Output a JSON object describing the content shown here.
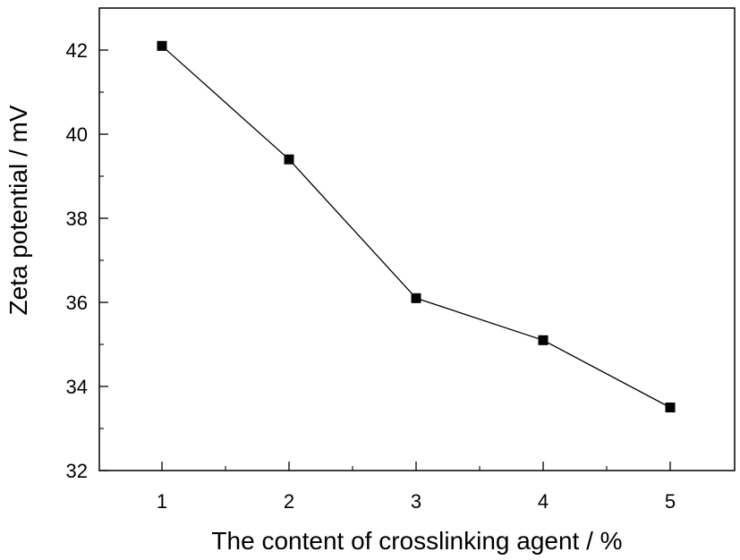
{
  "chart_data": {
    "type": "line",
    "title": "",
    "xlabel": "The content of crosslinking agent  / %",
    "ylabel": "Zeta potential / mV",
    "x": [
      1,
      2,
      3,
      4,
      5
    ],
    "series": [
      {
        "values": [
          42.1,
          39.4,
          36.1,
          35.1,
          33.5
        ],
        "marker": "square",
        "color": "#000000"
      }
    ],
    "xlim": [
      0.5,
      5.5
    ],
    "ylim": [
      32,
      43
    ],
    "x_ticks": [
      1,
      2,
      3,
      4,
      5
    ],
    "y_ticks": [
      32,
      34,
      36,
      38,
      40,
      42
    ],
    "x_minor_step": 0.5,
    "y_minor_step": 1,
    "grid": false,
    "legend": "none"
  }
}
